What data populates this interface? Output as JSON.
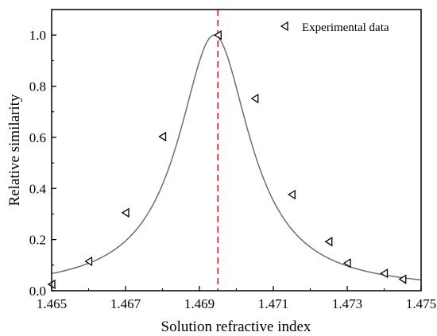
{
  "chart_data": {
    "type": "scatter",
    "xlabel": "Solution refractive index",
    "ylabel": "Relative similarity",
    "xlim": [
      1.465,
      1.475
    ],
    "ylim": [
      0.0,
      1.1
    ],
    "x_ticks": [
      "1.465",
      "1.467",
      "1.469",
      "1.471",
      "1.473",
      "1.475"
    ],
    "y_ticks": [
      "0.0",
      "0.2",
      "0.4",
      "0.6",
      "0.8",
      "1.0"
    ],
    "grid": false,
    "legend_position": "top-right",
    "series": [
      {
        "name": "Experimental data",
        "marker": "left-pointing open triangle",
        "x": [
          1.465,
          1.466,
          1.467,
          1.468,
          1.4695,
          1.4705,
          1.4715,
          1.4725,
          1.473,
          1.474,
          1.4745
        ],
        "y": [
          0.025,
          0.115,
          0.305,
          0.603,
          1.0,
          0.752,
          0.376,
          0.192,
          0.108,
          0.068,
          0.045
        ]
      }
    ],
    "fit_curve": {
      "form": "lorentzian",
      "center": 1.4694,
      "color": "#6e6e6e"
    },
    "reference_line": {
      "x": 1.4695,
      "style": "dashed",
      "color": "#ff0000"
    },
    "colors": {
      "axis": "#000000",
      "marker": "#000000",
      "fit": "#6e6e6e",
      "reference": "#ff0000"
    }
  }
}
